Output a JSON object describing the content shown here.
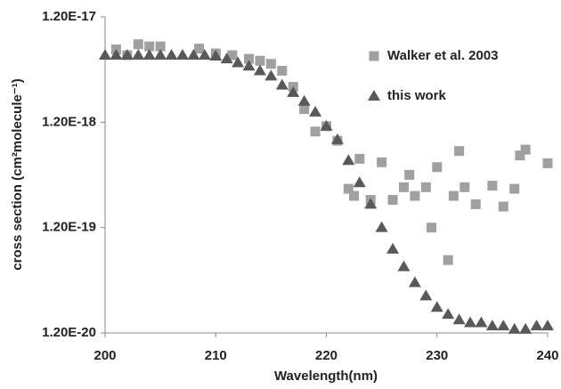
{
  "chart_data": {
    "type": "scatter",
    "x_label": "Wavelength(nm)",
    "y_label": "cross section (cm²molecule⁻¹)",
    "xlim": [
      200,
      240
    ],
    "xticks": [
      200,
      210,
      220,
      230,
      240
    ],
    "ylim": [
      1.2e-20,
      1.2e-17
    ],
    "yticks": [
      {
        "value": 1.2e-20,
        "label": "1.20E-20"
      },
      {
        "value": 1.2e-19,
        "label": "1.20E-19"
      },
      {
        "value": 1.2e-18,
        "label": "1.20E-18"
      },
      {
        "value": 1.2e-17,
        "label": "1.20E-17"
      }
    ],
    "y_scale": "log",
    "grid": false,
    "legend": "upper right",
    "series": [
      {
        "name": "Walker et al. 2003",
        "color": "#a0a0a0",
        "marker": "square",
        "x": [
          201,
          202,
          203,
          204,
          205,
          208.5,
          210,
          211.5,
          213,
          214,
          215,
          216,
          217,
          218,
          219,
          220,
          221,
          222,
          222.5,
          223,
          224,
          225,
          226,
          227,
          227.5,
          228,
          229,
          229.5,
          230,
          231,
          231.5,
          232,
          232.5,
          233.5,
          235,
          236,
          237,
          237.5,
          238,
          240
        ],
        "values": [
          5.9e-18,
          5.2e-18,
          6.6e-18,
          6.3e-18,
          6.3e-18,
          6e-18,
          5.4e-18,
          5.2e-18,
          4.8e-18,
          4.6e-18,
          4.3e-18,
          3.7e-18,
          2.6e-18,
          1.6e-18,
          9.8e-19,
          1.1e-18,
          8e-19,
          2.8e-19,
          2.4e-19,
          5.4e-19,
          2.2e-19,
          5e-19,
          2.2e-19,
          2.9e-19,
          3.8e-19,
          2.4e-19,
          2.9e-19,
          1.2e-19,
          4.5e-19,
          5.9e-20,
          2.4e-19,
          6.4e-19,
          2.9e-19,
          2e-19,
          3e-19,
          1.9e-19,
          2.8e-19,
          5.8e-19,
          6.6e-19,
          4.9e-19
        ]
      },
      {
        "name": "this work",
        "color": "#595959",
        "marker": "triangle",
        "x": [
          200,
          201,
          202,
          203,
          204,
          205,
          206,
          207,
          208,
          209,
          210,
          211,
          212,
          213,
          214,
          215,
          216,
          217,
          218,
          219,
          220,
          221,
          222,
          223,
          224,
          225,
          226,
          227,
          228,
          229,
          230,
          231,
          232,
          233,
          234,
          235,
          236,
          237,
          238,
          239,
          240
        ],
        "values": [
          5.2e-18,
          5.2e-18,
          5.2e-18,
          5.2e-18,
          5.2e-18,
          5.2e-18,
          5.2e-18,
          5.2e-18,
          5.2e-18,
          5.2e-18,
          5.1e-18,
          4.8e-18,
          4.4e-18,
          4.1e-18,
          3.7e-18,
          3.3e-18,
          2.7e-18,
          2.3e-18,
          1.9e-18,
          1.5e-18,
          1.1e-18,
          8.2e-19,
          5.2e-19,
          3.2e-19,
          2e-19,
          1.2e-19,
          7.5e-20,
          5.1e-20,
          3.6e-20,
          2.7e-20,
          2.1e-20,
          1.8e-20,
          1.6e-20,
          1.5e-20,
          1.5e-20,
          1.4e-20,
          1.4e-20,
          1.3e-20,
          1.3e-20,
          1.4e-20,
          1.4e-20
        ]
      }
    ]
  }
}
